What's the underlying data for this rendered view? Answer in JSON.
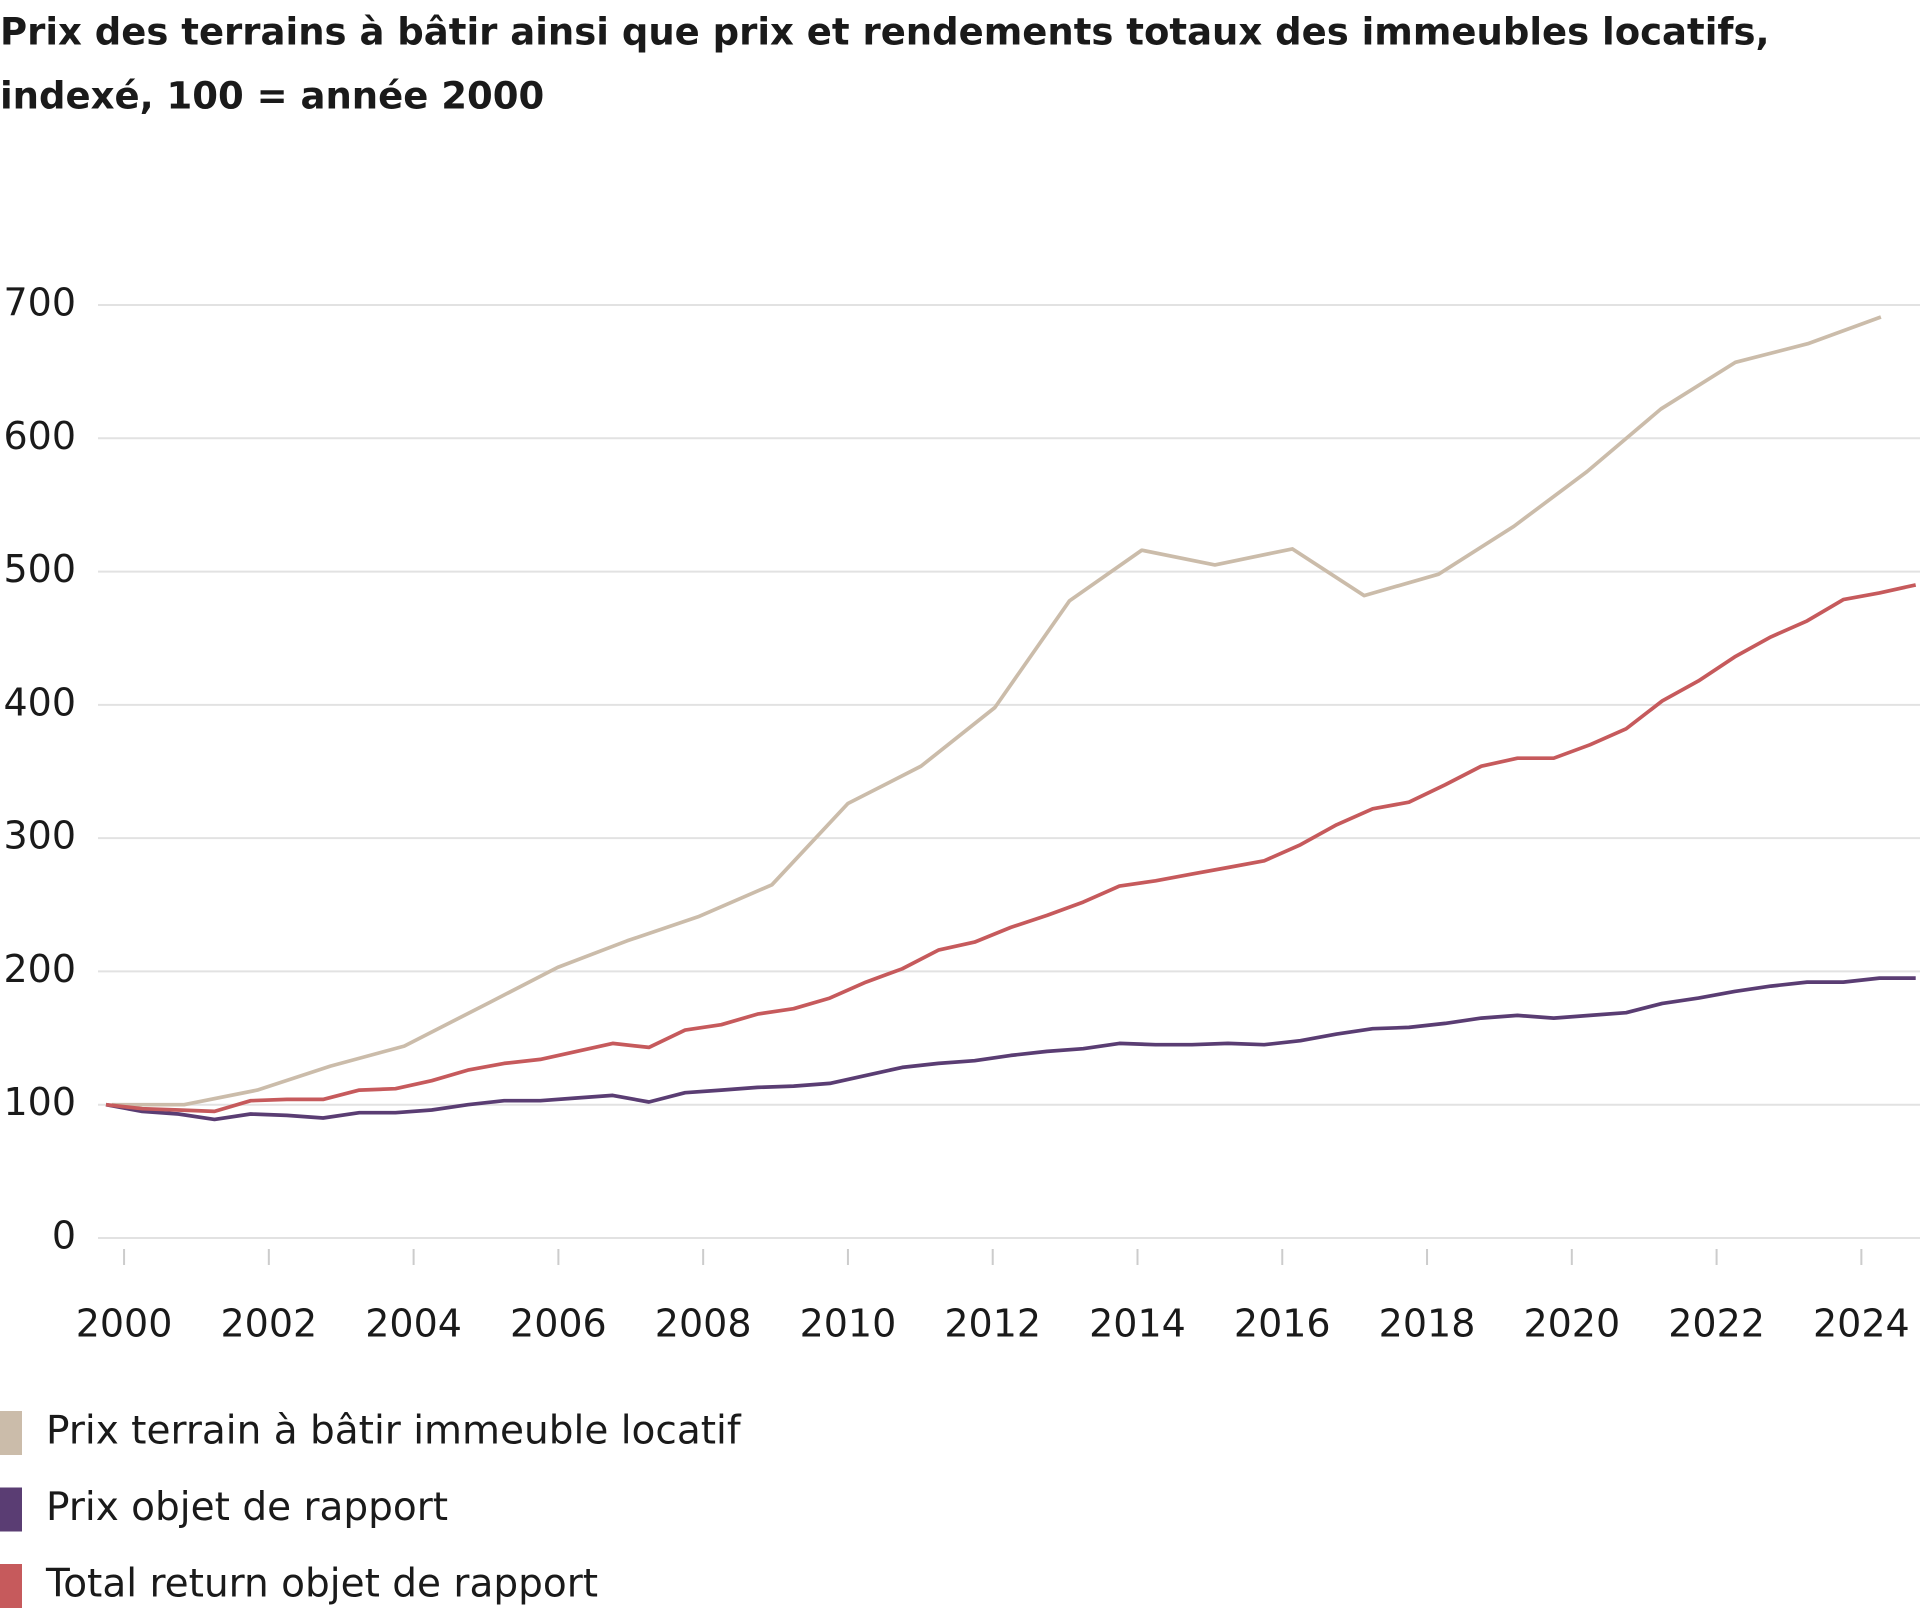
{
  "chart_data": {
    "type": "line",
    "title": "Prix des terrains à bâtir ainsi que prix et rendements totaux des immeubles locatifs,",
    "subtitle": "indexé, 100 = année 2000",
    "xlim": [
      1999.64,
      2024.81
    ],
    "xticks": [
      2000,
      2002,
      2004,
      2006,
      2008,
      2010,
      2012,
      2014,
      2016,
      2018,
      2020,
      2022,
      2024
    ],
    "ylim": [
      0,
      700
    ],
    "yticks": [
      0,
      100,
      200,
      300,
      400,
      500,
      600,
      700
    ],
    "grid": true,
    "legend": "bottom",
    "series": [
      {
        "name": "Prix terrain à bâtir immeuble locatif",
        "color": "#cbbcaa",
        "x": [
          1999.83,
          2000.83,
          2001.84,
          2002.85,
          2003.87,
          2005.06,
          2005.99,
          2006.95,
          2007.93,
          2008.95,
          2010.0,
          2011.01,
          2012.03,
          2013.06,
          2014.06,
          2015.07,
          2016.14,
          2017.13,
          2018.16,
          2019.2,
          2020.21,
          2021.23,
          2022.26,
          2023.26,
          2024.27
        ],
        "values": [
          100,
          100,
          111,
          129,
          144,
          177,
          203,
          223,
          241,
          265,
          326,
          354,
          398,
          478,
          516,
          505,
          517,
          482,
          498,
          534,
          575,
          622,
          657,
          671,
          691
        ]
      },
      {
        "name": "Prix objet de rapport",
        "color": "#5a3d73",
        "x": [
          1999.75,
          2000.25,
          2000.75,
          2001.25,
          2001.75,
          2002.25,
          2002.75,
          2003.25,
          2003.75,
          2004.25,
          2004.75,
          2005.25,
          2005.75,
          2006.25,
          2006.75,
          2007.25,
          2007.75,
          2008.25,
          2008.75,
          2009.25,
          2009.75,
          2010.25,
          2010.75,
          2011.25,
          2011.75,
          2012.25,
          2012.75,
          2013.25,
          2013.75,
          2014.25,
          2014.75,
          2015.25,
          2015.75,
          2016.25,
          2016.75,
          2017.25,
          2017.75,
          2018.25,
          2018.75,
          2019.25,
          2019.75,
          2020.25,
          2020.75,
          2021.25,
          2021.75,
          2022.25,
          2022.75,
          2023.25,
          2023.75,
          2024.25,
          2024.75
        ],
        "values": [
          100,
          95,
          93,
          89,
          93,
          92,
          90,
          94,
          94,
          96,
          100,
          103,
          103,
          105,
          107,
          102,
          109,
          111,
          113,
          114,
          116,
          122,
          128,
          131,
          133,
          137,
          140,
          142,
          146,
          145,
          145,
          146,
          145,
          148,
          153,
          157,
          158,
          161,
          165,
          167,
          165,
          167,
          169,
          176,
          180,
          185,
          189,
          192,
          192,
          195,
          195
        ]
      },
      {
        "name": "Total return objet de rapport",
        "color": "#c65a5c",
        "x": [
          1999.75,
          2000.25,
          2000.75,
          2001.25,
          2001.75,
          2002.25,
          2002.75,
          2003.25,
          2003.75,
          2004.25,
          2004.75,
          2005.25,
          2005.75,
          2006.25,
          2006.75,
          2007.25,
          2007.75,
          2008.25,
          2008.75,
          2009.25,
          2009.75,
          2010.25,
          2010.75,
          2011.25,
          2011.75,
          2012.25,
          2012.75,
          2013.25,
          2013.75,
          2014.25,
          2014.75,
          2015.25,
          2015.75,
          2016.25,
          2016.75,
          2017.25,
          2017.75,
          2018.25,
          2018.75,
          2019.25,
          2019.75,
          2020.25,
          2020.75,
          2021.25,
          2021.75,
          2022.25,
          2022.75,
          2023.25,
          2023.75,
          2024.25,
          2024.75
        ],
        "values": [
          100,
          97,
          96,
          95,
          103,
          104,
          104,
          111,
          112,
          118,
          126,
          131,
          134,
          140,
          146,
          143,
          156,
          160,
          168,
          172,
          180,
          192,
          202,
          216,
          222,
          233,
          242,
          252,
          264,
          268,
          273,
          278,
          283,
          295,
          310,
          322,
          327,
          340,
          354,
          360,
          360,
          370,
          382,
          403,
          418,
          436,
          451,
          463,
          479,
          484,
          490
        ]
      }
    ]
  }
}
